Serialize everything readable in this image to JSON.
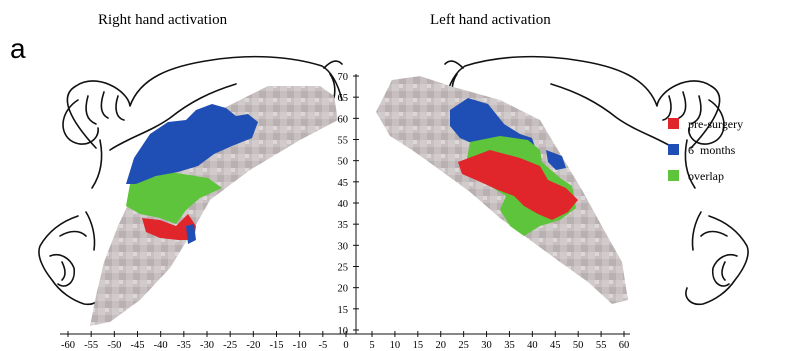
{
  "panel_label": "a",
  "titles": {
    "right": "Right hand activation",
    "left": "Left hand activation"
  },
  "axes": {
    "x_left_ticks": [
      "-60",
      "-55",
      "-50",
      "-45",
      "-40",
      "-35",
      "-30",
      "-25",
      "-20",
      "-15",
      "-10",
      "-5",
      "0"
    ],
    "x_right_ticks": [
      "5",
      "10",
      "15",
      "20",
      "25",
      "30",
      "35",
      "40",
      "45",
      "50",
      "55",
      "60"
    ],
    "y_ticks": [
      "70",
      "65",
      "60",
      "55",
      "50",
      "45",
      "40",
      "35",
      "30",
      "25",
      "20",
      "15",
      "10"
    ]
  },
  "legend": [
    {
      "label": "pre-surgery",
      "color": "#e0262b"
    },
    {
      "label": "6  months",
      "color": "#1f4fb5"
    },
    {
      "label": "overlap",
      "color": "#5ec43b"
    }
  ],
  "colors": {
    "cortex": "#c9c1c0",
    "cortex_dark": "#a79d9e",
    "ink": "#111111"
  },
  "icons": [
    "homunculus-body-icon",
    "homunculus-face-icon"
  ]
}
